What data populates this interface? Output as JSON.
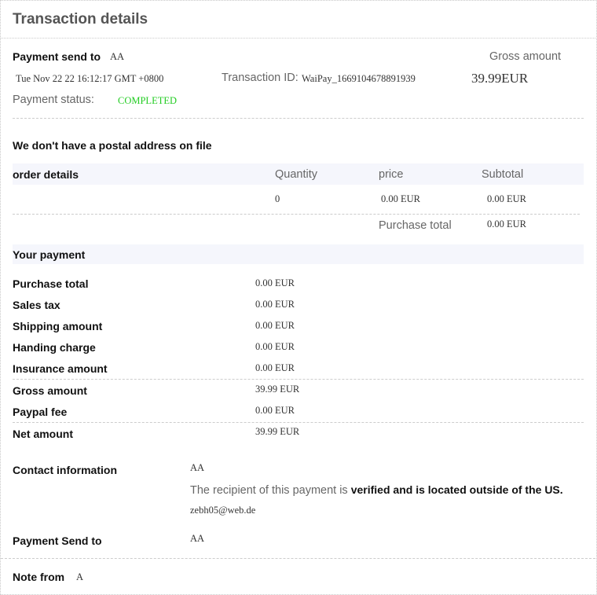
{
  "header": {
    "title": "Transaction details"
  },
  "summary": {
    "payment_send_to_label": "Payment send to",
    "payment_send_to_value": "AA",
    "date": "Tue Nov 22 22 16:12:17 GMT +0800",
    "transaction_id_label": "Transaction ID:",
    "transaction_id_value": "WaiPay_1669104678891939",
    "gross_amount_label": "Gross amount",
    "gross_amount_value": "39.99EUR",
    "payment_status_label": "Payment status:",
    "payment_status_value": "COMPLETED",
    "status_color": "#22cc22"
  },
  "postal_notice": "We don't have a postal address on file",
  "order": {
    "headers": [
      "order details",
      "Quantity",
      "price",
      "Subtotal"
    ],
    "rows": [
      {
        "quantity": "0",
        "price": "0.00 EUR",
        "subtotal": "0.00 EUR"
      }
    ],
    "purchase_total_label": "Purchase total",
    "purchase_total_value": "0.00 EUR"
  },
  "payment": {
    "title": "Your payment",
    "rows": [
      {
        "label": "Purchase total",
        "value": "0.00 EUR"
      },
      {
        "label": "Sales tax",
        "value": "0.00 EUR"
      },
      {
        "label": "Shipping amount",
        "value": "0.00 EUR"
      },
      {
        "label": "Handing charge",
        "value": "0.00 EUR"
      },
      {
        "label": "Insurance amount",
        "value": "0.00 EUR"
      },
      {
        "label": "Gross amount",
        "value": "39.99 EUR"
      },
      {
        "label": "Paypal fee",
        "value": "0.00 EUR"
      },
      {
        "label": "Net amount",
        "value": "39.99 EUR"
      }
    ]
  },
  "contact": {
    "label": "Contact information",
    "name": "AA",
    "recipient_text": "The recipient of this payment is ",
    "recipient_bold": "verified and is located outside of the US.",
    "email": "zebh05@web.de",
    "send_to_label": "Payment Send to",
    "send_to_value": "AA"
  },
  "note": {
    "label": "Note from",
    "value": "A"
  }
}
